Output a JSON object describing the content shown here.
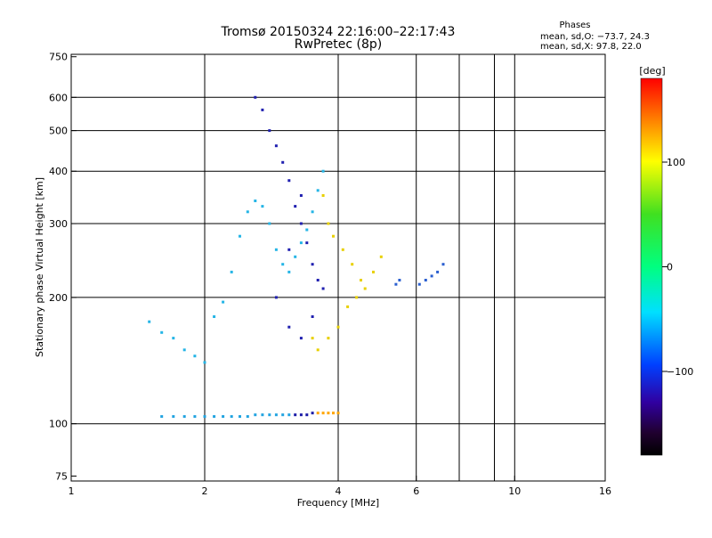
{
  "chart_data": {
    "type": "scatter",
    "title": "Tromsø 20150324 22:16:00–22:17:43",
    "subtitle": "RwPretec (8p)",
    "xlabel": "Frequency [MHz]",
    "ylabel": "Stationary phase Virtual Height [km]",
    "x_scale": "log",
    "y_scale": "log",
    "xlim": [
      1,
      16
    ],
    "ylim": [
      73,
      760
    ],
    "x_ticks": [
      1,
      2,
      4,
      6,
      10,
      16
    ],
    "x_tick_labels": [
      "1",
      "2",
      "4",
      "6",
      "10",
      "16"
    ],
    "y_ticks": [
      75,
      100,
      200,
      300,
      400,
      500,
      600,
      750
    ],
    "y_tick_labels": [
      "75",
      "100",
      "200",
      "300",
      "400",
      "500",
      "600",
      "750"
    ],
    "x_grid": [
      1,
      2,
      4,
      6,
      7.5,
      9,
      10,
      16
    ],
    "y_grid": [
      100,
      200,
      300,
      400,
      500,
      600
    ],
    "phases": {
      "heading": "Phases",
      "line_o": "mean, sd,O: −73.7, 24.3",
      "line_x": "mean, sd,X:  97.8, 22.0"
    },
    "colorbar": {
      "unit": "[deg]",
      "range": [
        -180,
        180
      ],
      "ticks": [
        100,
        0,
        -100
      ],
      "tick_labels": [
        "100",
        "0",
        "−100"
      ]
    },
    "series": [
      {
        "name": "E-layer O (blue)",
        "phase_deg": -75,
        "color": "#21a3e0",
        "points": [
          [
            1.6,
            104
          ],
          [
            1.7,
            104
          ],
          [
            1.8,
            104
          ],
          [
            1.9,
            104
          ],
          [
            2.0,
            104
          ],
          [
            2.1,
            104
          ],
          [
            2.2,
            104
          ],
          [
            2.3,
            104
          ],
          [
            2.4,
            104
          ],
          [
            2.5,
            104
          ],
          [
            2.6,
            105
          ],
          [
            2.7,
            105
          ],
          [
            2.8,
            105
          ],
          [
            2.9,
            105
          ],
          [
            3.0,
            105
          ],
          [
            3.1,
            105
          ]
        ]
      },
      {
        "name": "E-layer X (dark blue)",
        "phase_deg": -110,
        "color": "#1a1aa6",
        "points": [
          [
            3.2,
            105
          ],
          [
            3.3,
            105
          ],
          [
            3.4,
            105
          ],
          [
            3.5,
            106
          ]
        ]
      },
      {
        "name": "E-layer X (orange)",
        "phase_deg": 130,
        "color": "#ffa500",
        "points": [
          [
            3.6,
            106
          ],
          [
            3.7,
            106
          ],
          [
            3.8,
            106
          ],
          [
            3.9,
            106
          ],
          [
            4.0,
            106
          ]
        ]
      },
      {
        "name": "F-layer O trace (cyan)",
        "phase_deg": -70,
        "color": "#25b5e6",
        "points": [
          [
            1.5,
            175
          ],
          [
            1.6,
            165
          ],
          [
            1.7,
            160
          ],
          [
            1.8,
            150
          ],
          [
            1.9,
            145
          ],
          [
            2.0,
            140
          ],
          [
            2.1,
            180
          ],
          [
            2.2,
            195
          ],
          [
            2.3,
            230
          ],
          [
            2.4,
            280
          ],
          [
            2.5,
            320
          ],
          [
            2.6,
            340
          ],
          [
            2.7,
            330
          ],
          [
            2.8,
            300
          ],
          [
            2.9,
            260
          ],
          [
            3.0,
            240
          ],
          [
            3.1,
            230
          ],
          [
            3.2,
            250
          ],
          [
            3.3,
            270
          ],
          [
            3.4,
            290
          ],
          [
            3.5,
            320
          ],
          [
            3.6,
            360
          ],
          [
            3.7,
            400
          ]
        ]
      },
      {
        "name": "F-layer (blue/purple)",
        "phase_deg": -110,
        "color": "#2020b0",
        "points": [
          [
            2.6,
            600
          ],
          [
            2.7,
            560
          ],
          [
            2.8,
            500
          ],
          [
            2.9,
            460
          ],
          [
            3.0,
            420
          ],
          [
            3.1,
            380
          ],
          [
            3.2,
            330
          ],
          [
            3.3,
            300
          ],
          [
            3.4,
            270
          ],
          [
            3.5,
            240
          ],
          [
            3.6,
            220
          ],
          [
            3.7,
            210
          ],
          [
            3.1,
            170
          ],
          [
            3.3,
            160
          ],
          [
            3.5,
            180
          ],
          [
            2.9,
            200
          ],
          [
            3.1,
            260
          ],
          [
            3.3,
            350
          ]
        ]
      },
      {
        "name": "F-layer X (yellow/orange)",
        "phase_deg": 110,
        "color": "#e8d000",
        "points": [
          [
            3.5,
            160
          ],
          [
            3.6,
            150
          ],
          [
            3.8,
            160
          ],
          [
            4.0,
            170
          ],
          [
            4.2,
            190
          ],
          [
            4.4,
            200
          ],
          [
            4.6,
            210
          ],
          [
            4.8,
            230
          ],
          [
            5.0,
            250
          ],
          [
            3.7,
            350
          ],
          [
            3.8,
            300
          ],
          [
            3.9,
            280
          ],
          [
            4.1,
            260
          ],
          [
            4.3,
            240
          ],
          [
            4.5,
            220
          ]
        ]
      },
      {
        "name": "High-frequency spread",
        "phase_deg": -90,
        "color": "#2a5fd0",
        "points": [
          [
            5.4,
            215
          ],
          [
            5.5,
            220
          ],
          [
            6.1,
            215
          ],
          [
            6.3,
            220
          ],
          [
            6.5,
            225
          ],
          [
            6.7,
            230
          ],
          [
            6.9,
            240
          ]
        ]
      }
    ]
  }
}
